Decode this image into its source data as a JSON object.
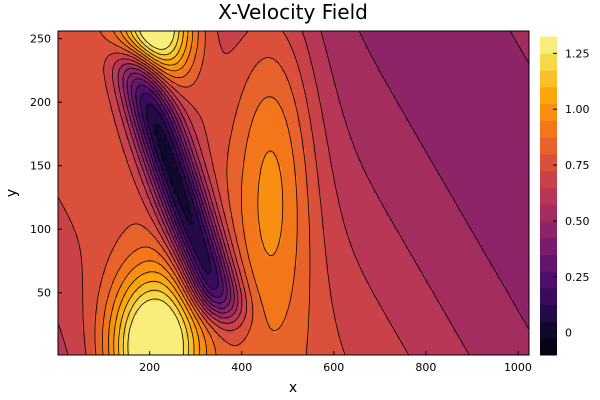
{
  "chart_data": {
    "type": "contour",
    "title": "X-Velocity Field",
    "xlabel": "x",
    "ylabel": "y",
    "xlim": [
      1,
      1024
    ],
    "ylim": [
      1,
      256
    ],
    "xticks": [
      200,
      400,
      600,
      800,
      1000
    ],
    "yticks": [
      50,
      100,
      150,
      200,
      250
    ],
    "colorbar": {
      "colormap": "inferno",
      "range": [
        -0.1,
        1.35
      ],
      "ticks": [
        0,
        0.25,
        0.5,
        0.75,
        1.0,
        1.25
      ],
      "tick_labels": [
        "0",
        "0.25",
        "0.50",
        "0.75",
        "1.00",
        "1.25"
      ],
      "levels": [
        -0.1,
        -0.025,
        0.05,
        0.125,
        0.2,
        0.275,
        0.35,
        0.425,
        0.5,
        0.575,
        0.65,
        0.725,
        0.8,
        0.875,
        0.95,
        1.025,
        1.1,
        1.175,
        1.25,
        1.325
      ]
    },
    "field_description_features": [
      {
        "name": "low-velocity core",
        "x": [
          150,
          400
        ],
        "y": [
          40,
          220
        ],
        "value": -0.1
      },
      {
        "name": "high-velocity lobe bottom",
        "x": 210,
        "y": 10,
        "value": 1.35
      },
      {
        "name": "high-velocity lobe top",
        "x": 200,
        "y": 256,
        "value": 1.3
      }
    ]
  }
}
